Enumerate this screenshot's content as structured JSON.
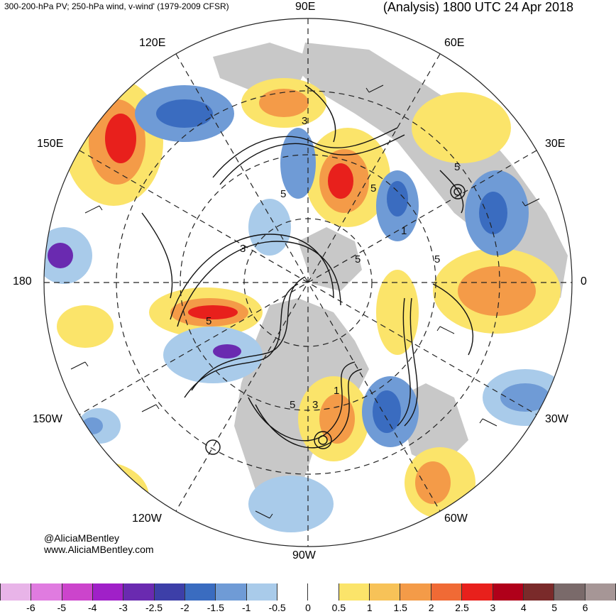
{
  "header": {
    "product": "300-200-hPa PV; 250-hPa wind, v-wind' (1979-2009 CFSR)",
    "valid": "(Analysis) 1800 UTC 24 Apr 2018"
  },
  "longitude_labels": {
    "e90": "90E",
    "e60": "60E",
    "e120": "120E",
    "e150": "150E",
    "e30": "30E",
    "lon180": "180",
    "lon0": "0",
    "w150": "150W",
    "w30": "30W",
    "w120": "120W",
    "w60": "60W",
    "w90": "90W"
  },
  "credits": {
    "handle": "@AliciaMBentley",
    "site": "www.AliciaMBentley.com"
  },
  "contour_labels": [
    "3",
    "5",
    "5",
    "1",
    "5",
    "3",
    "1",
    "5",
    "5",
    "5",
    "3",
    "5"
  ],
  "colorbar": {
    "labels": [
      "-6",
      "-5",
      "-4",
      "-3",
      "-2.5",
      "-2",
      "-1.5",
      "-1",
      "-0.5",
      "0",
      "0.5",
      "1",
      "1.5",
      "2",
      "2.5",
      "3",
      "4",
      "5",
      "6"
    ],
    "colors": [
      "#e8b4e8",
      "#e07be0",
      "#cc44cc",
      "#a020c8",
      "#6a2ab0",
      "#3d3fa8",
      "#3a6cc0",
      "#6f9bd6",
      "#a9cbea",
      "#ffffff",
      "#ffffff",
      "#fbe46a",
      "#f7c258",
      "#f49b48",
      "#f06a35",
      "#e8201c",
      "#b0001a",
      "#7a2a2a",
      "#7a6a6a",
      "#a69696"
    ]
  },
  "map_colors": {
    "ocean": "#ffffff",
    "land": "#c8c8c8",
    "positive_1": "#fbe46a",
    "positive_2": "#f49b48",
    "positive_3": "#e8201c",
    "negative_1": "#a9cbea",
    "negative_2": "#6f9bd6",
    "negative_3": "#3a6cc0",
    "negative_4": "#6a2ab0"
  }
}
